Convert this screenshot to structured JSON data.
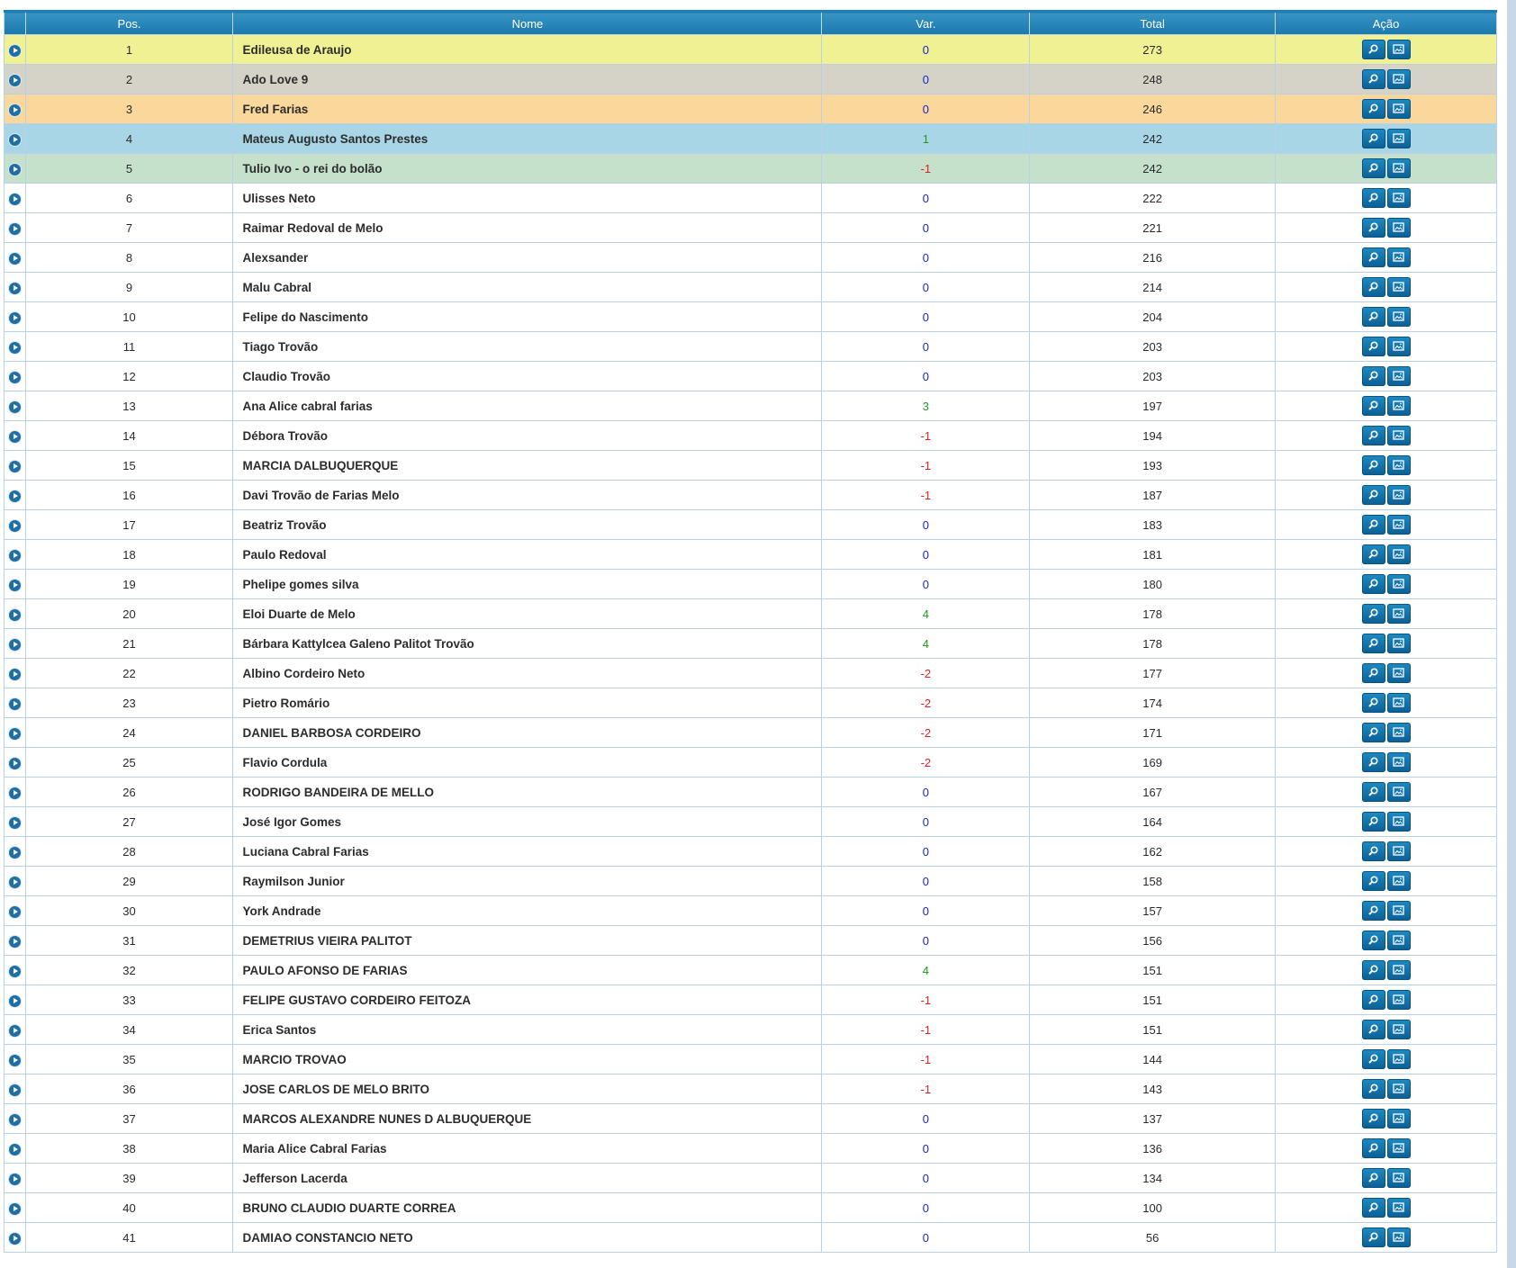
{
  "table": {
    "headers": {
      "pos": "Pos.",
      "name": "Nome",
      "var": "Var.",
      "total": "Total",
      "action": "Ação"
    },
    "rows": [
      {
        "pos": "1",
        "name": "Edileusa de Araujo",
        "var": "0",
        "total": "273"
      },
      {
        "pos": "2",
        "name": "Ado Love 9",
        "var": "0",
        "total": "248"
      },
      {
        "pos": "3",
        "name": "Fred Farias",
        "var": "0",
        "total": "246"
      },
      {
        "pos": "4",
        "name": "Mateus Augusto Santos Prestes",
        "var": "1",
        "total": "242"
      },
      {
        "pos": "5",
        "name": "Tulio Ivo - o rei do bolão",
        "var": "-1",
        "total": "242"
      },
      {
        "pos": "6",
        "name": "Ulisses Neto",
        "var": "0",
        "total": "222"
      },
      {
        "pos": "7",
        "name": "Raimar Redoval de Melo",
        "var": "0",
        "total": "221"
      },
      {
        "pos": "8",
        "name": "Alexsander",
        "var": "0",
        "total": "216"
      },
      {
        "pos": "9",
        "name": "Malu Cabral",
        "var": "0",
        "total": "214"
      },
      {
        "pos": "10",
        "name": "Felipe do Nascimento",
        "var": "0",
        "total": "204"
      },
      {
        "pos": "11",
        "name": "Tiago Trovão",
        "var": "0",
        "total": "203"
      },
      {
        "pos": "12",
        "name": "Claudio Trovão",
        "var": "0",
        "total": "203"
      },
      {
        "pos": "13",
        "name": "Ana Alice cabral farias",
        "var": "3",
        "total": "197"
      },
      {
        "pos": "14",
        "name": "Débora Trovão",
        "var": "-1",
        "total": "194"
      },
      {
        "pos": "15",
        "name": "MARCIA DALBUQUERQUE",
        "var": "-1",
        "total": "193"
      },
      {
        "pos": "16",
        "name": "Davi Trovão de Farias Melo",
        "var": "-1",
        "total": "187"
      },
      {
        "pos": "17",
        "name": "Beatriz Trovão",
        "var": "0",
        "total": "183"
      },
      {
        "pos": "18",
        "name": "Paulo Redoval",
        "var": "0",
        "total": "181"
      },
      {
        "pos": "19",
        "name": "Phelipe gomes silva",
        "var": "0",
        "total": "180"
      },
      {
        "pos": "20",
        "name": "Eloi Duarte de Melo",
        "var": "4",
        "total": "178"
      },
      {
        "pos": "21",
        "name": "Bárbara Kattylcea Galeno Palitot Trovão",
        "var": "4",
        "total": "178"
      },
      {
        "pos": "22",
        "name": "Albino Cordeiro Neto",
        "var": "-2",
        "total": "177"
      },
      {
        "pos": "23",
        "name": "Pietro Romário",
        "var": "-2",
        "total": "174"
      },
      {
        "pos": "24",
        "name": "DANIEL BARBOSA CORDEIRO",
        "var": "-2",
        "total": "171"
      },
      {
        "pos": "25",
        "name": "Flavio Cordula",
        "var": "-2",
        "total": "169"
      },
      {
        "pos": "26",
        "name": "RODRIGO BANDEIRA DE MELLO",
        "var": "0",
        "total": "167"
      },
      {
        "pos": "27",
        "name": "José Igor Gomes",
        "var": "0",
        "total": "164"
      },
      {
        "pos": "28",
        "name": "Luciana Cabral Farias",
        "var": "0",
        "total": "162"
      },
      {
        "pos": "29",
        "name": "Raymilson Junior",
        "var": "0",
        "total": "158"
      },
      {
        "pos": "30",
        "name": "York Andrade",
        "var": "0",
        "total": "157"
      },
      {
        "pos": "31",
        "name": "DEMETRIUS VIEIRA PALITOT",
        "var": "0",
        "total": "156"
      },
      {
        "pos": "32",
        "name": "PAULO AFONSO DE FARIAS",
        "var": "4",
        "total": "151"
      },
      {
        "pos": "33",
        "name": "FELIPE GUSTAVO CORDEIRO FEITOZA",
        "var": "-1",
        "total": "151"
      },
      {
        "pos": "34",
        "name": "Erica Santos",
        "var": "-1",
        "total": "151"
      },
      {
        "pos": "35",
        "name": "MARCIO TROVAO",
        "var": "-1",
        "total": "144"
      },
      {
        "pos": "36",
        "name": "JOSE CARLOS DE MELO BRITO",
        "var": "-1",
        "total": "143"
      },
      {
        "pos": "37",
        "name": "MARCOS ALEXANDRE NUNES D ALBUQUERQUE",
        "var": "0",
        "total": "137"
      },
      {
        "pos": "38",
        "name": "Maria Alice Cabral Farias",
        "var": "0",
        "total": "136"
      },
      {
        "pos": "39",
        "name": "Jefferson Lacerda",
        "var": "0",
        "total": "134"
      },
      {
        "pos": "40",
        "name": "BRUNO CLAUDIO DUARTE CORREA",
        "var": "0",
        "total": "100"
      },
      {
        "pos": "41",
        "name": "DAMIAO CONSTANCIO NETO",
        "var": "0",
        "total": "56"
      }
    ]
  },
  "icons": {
    "expand": "expand-circle-icon",
    "details": "magnifier-icon",
    "image": "picture-icon"
  },
  "colors": {
    "header": "#1f80b6",
    "rank1": "#eff192",
    "rank2": "#d5d3c7",
    "rank3": "#fad79b",
    "rank4": "#a9d6e6",
    "rank5": "#c5e1cb",
    "var_positive": "#1d9a1d",
    "var_negative": "#e02020",
    "var_zero": "#1a24d6"
  }
}
